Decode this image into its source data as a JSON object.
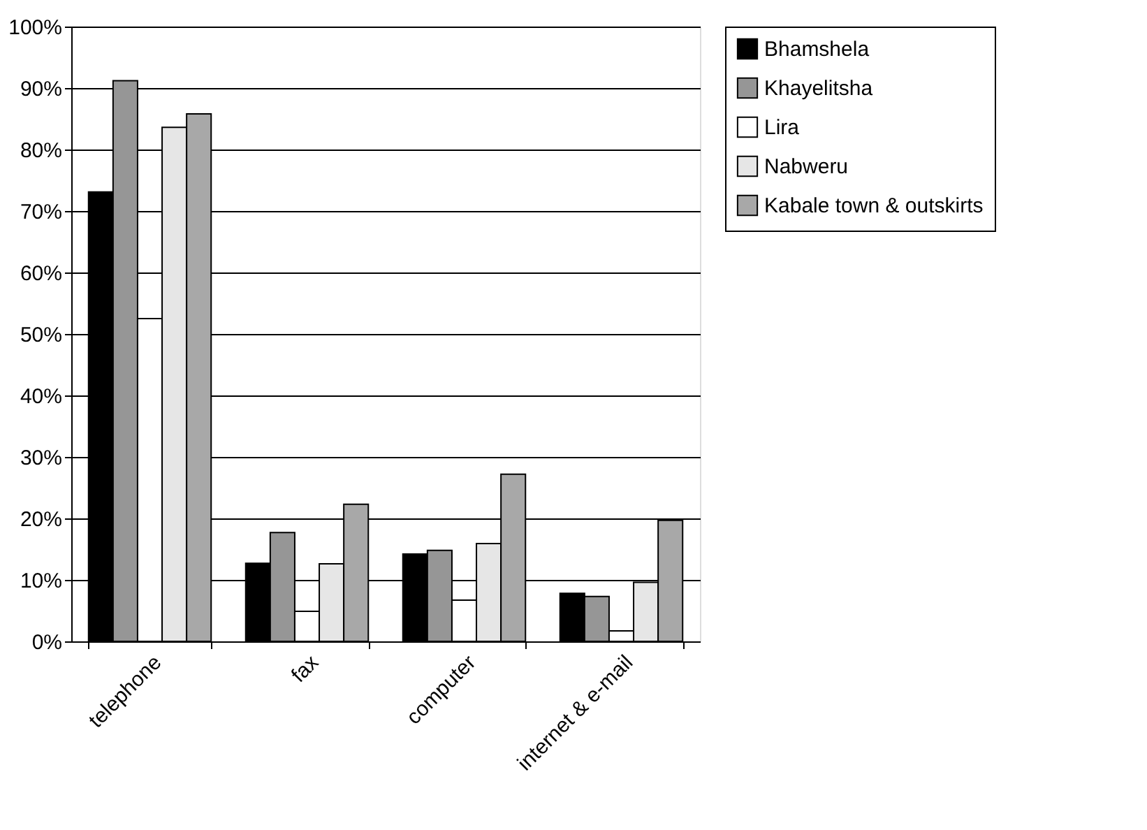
{
  "chart_data": {
    "type": "bar",
    "categories": [
      "telephone",
      "fax",
      "computer",
      "internet & e-mail"
    ],
    "series": [
      {
        "name": "Bhamshela",
        "color": "#000000",
        "values": [
          73.1,
          12.7,
          14.2,
          7.8
        ]
      },
      {
        "name": "Khayelitsha",
        "color": "#969696",
        "values": [
          91.2,
          17.7,
          14.8,
          7.3
        ]
      },
      {
        "name": "Lira",
        "color": "#ffffff",
        "values": [
          52.5,
          4.9,
          6.7,
          1.7
        ]
      },
      {
        "name": "Nabweru",
        "color": "#e6e6e6",
        "values": [
          83.6,
          12.6,
          15.9,
          9.6
        ]
      },
      {
        "name": "Kabale town & outskirts",
        "color": "#a8a8a8",
        "values": [
          85.8,
          22.3,
          27.2,
          19.7
        ]
      }
    ],
    "ylim": [
      0,
      100
    ],
    "yticks": [
      {
        "value": 0,
        "label": "0%"
      },
      {
        "value": 10,
        "label": "10%"
      },
      {
        "value": 20,
        "label": "20%"
      },
      {
        "value": 30,
        "label": "30%"
      },
      {
        "value": 40,
        "label": "40%"
      },
      {
        "value": 50,
        "label": "50%"
      },
      {
        "value": 60,
        "label": "60%"
      },
      {
        "value": 70,
        "label": "70%"
      },
      {
        "value": 80,
        "label": "80%"
      },
      {
        "value": 90,
        "label": "90%"
      },
      {
        "value": 100,
        "label": "100%"
      }
    ],
    "grid": "y",
    "legend": "right"
  }
}
